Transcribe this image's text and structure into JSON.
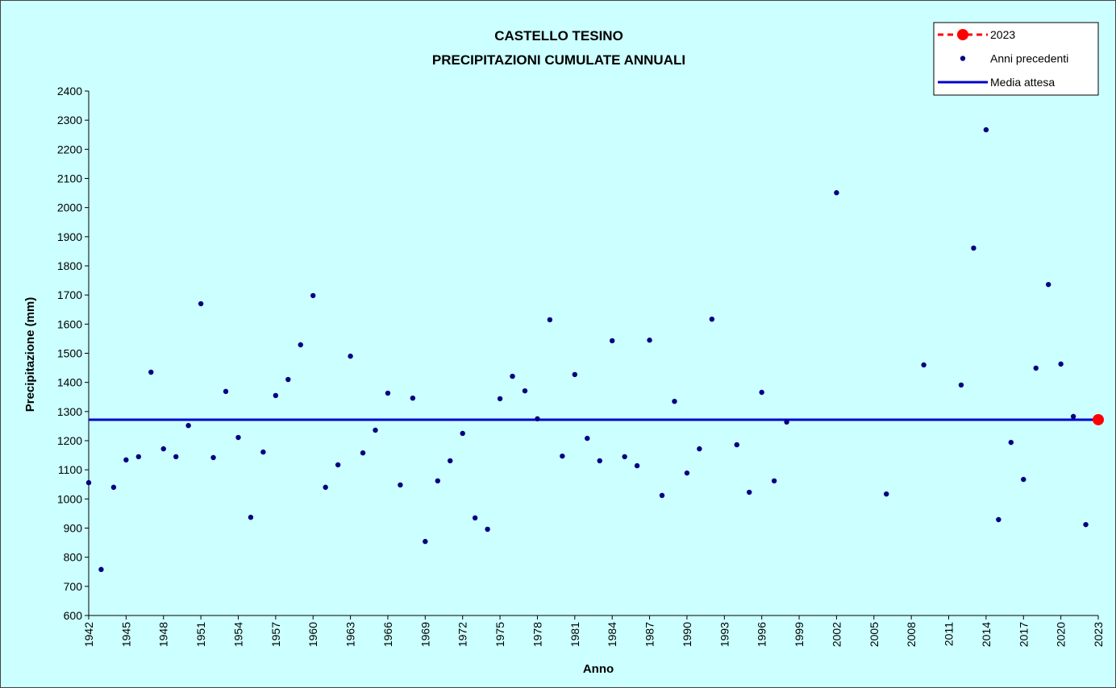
{
  "chart_data": {
    "type": "scatter",
    "title": "CASTELLO TESINO",
    "subtitle": "PRECIPITAZIONI CUMULATE ANNUALI",
    "x_label": "Anno",
    "y_label": "Precipitazione (mm)",
    "xlim": [
      1942,
      2023
    ],
    "ylim": [
      600,
      2400
    ],
    "xticks": [
      1942,
      1945,
      1948,
      1951,
      1954,
      1957,
      1960,
      1963,
      1966,
      1969,
      1972,
      1975,
      1978,
      1981,
      1984,
      1987,
      1990,
      1993,
      1996,
      1999,
      2002,
      2005,
      2008,
      2011,
      2014,
      2017,
      2020,
      2023
    ],
    "yticks": [
      600,
      700,
      800,
      900,
      1000,
      1100,
      1200,
      1300,
      1400,
      1500,
      1600,
      1700,
      1800,
      1900,
      2000,
      2100,
      2200,
      2300,
      2400
    ],
    "grid": false,
    "legend": "top-right",
    "series": [
      {
        "name": "2023",
        "color": "#ff0000",
        "marker": "large-dot",
        "legend_line": "dashed",
        "x": [
          2023
        ],
        "values": [
          1272
        ]
      },
      {
        "name": "Anni precedenti",
        "color": "#000080",
        "marker": "dot",
        "x": [
          1942,
          1943,
          1944,
          1945,
          1946,
          1947,
          1948,
          1949,
          1950,
          1951,
          1952,
          1953,
          1954,
          1955,
          1956,
          1957,
          1958,
          1959,
          1960,
          1961,
          1962,
          1963,
          1964,
          1965,
          1966,
          1967,
          1968,
          1969,
          1970,
          1971,
          1972,
          1973,
          1974,
          1975,
          1976,
          1977,
          1978,
          1979,
          1980,
          1981,
          1982,
          1983,
          1984,
          1985,
          1986,
          1987,
          1988,
          1989,
          1990,
          1991,
          1992,
          1994,
          1995,
          1996,
          1997,
          1998,
          2002,
          2006,
          2009,
          2012,
          2013,
          2014,
          2015,
          2016,
          2017,
          2018,
          2019,
          2020,
          2021,
          2022
        ],
        "values": [
          1056,
          758,
          1040,
          1134,
          1145,
          1435,
          1172,
          1145,
          1252,
          1670,
          1142,
          1369,
          1211,
          937,
          1161,
          1355,
          1410,
          1529,
          1698,
          1040,
          1117,
          1490,
          1158,
          1236,
          1363,
          1048,
          1346,
          854,
          1062,
          1131,
          1225,
          935,
          896,
          1344,
          1421,
          1371,
          1275,
          1615,
          1147,
          1427,
          1208,
          1131,
          1543,
          1145,
          1114,
          1545,
          1012,
          1335,
          1089,
          1172,
          1617,
          1186,
          1023,
          1366,
          1062,
          1264,
          2051,
          1017,
          1460,
          1391,
          1861,
          2267,
          929,
          1194,
          1067,
          1449,
          1736,
          1463,
          1283,
          912
        ]
      },
      {
        "name": "Media attesa",
        "color": "#0000cc",
        "marker": "line",
        "x": [
          1942,
          2023
        ],
        "values": [
          1272,
          1272
        ]
      }
    ]
  }
}
